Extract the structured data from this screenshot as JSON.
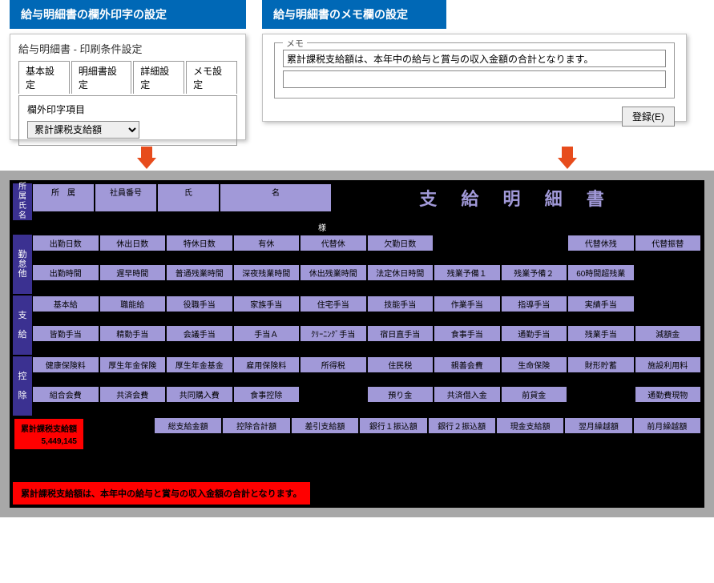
{
  "left_banner": "給与明細書の欄外印字の設定",
  "right_banner": "給与明細書のメモ欄の設定",
  "left_panel": {
    "title": "給与明細書 - 印刷条件設定",
    "tabs": [
      "基本設定",
      "明細書設定",
      "詳細設定",
      "メモ設定"
    ],
    "active_tab": 2,
    "field_label": "欄外印字項目",
    "select_value": "累計課税支給額"
  },
  "right_panel": {
    "legend": "メモ",
    "memo_value": "累計課税支給額は、本年中の給与と賞与の収入金額の合計となります。",
    "blank_value": "",
    "button": "登録(E)"
  },
  "report": {
    "title": "支 給 明 細 書",
    "name_side": "所属氏名",
    "name_hdrs": [
      "所　属",
      "社員番号",
      "氏",
      "名"
    ],
    "sama": "様",
    "kintai_side": "勤怠他",
    "kintai_r1": [
      "出勤日数",
      "休出日数",
      "特休日数",
      "有休",
      "代替休",
      "欠勤日数",
      "",
      "",
      "代替休残",
      "代替振替"
    ],
    "kintai_r2": [
      "出勤時間",
      "遅早時間",
      "普通残業時間",
      "深夜残業時間",
      "休出残業時間",
      "法定休日時間",
      "残業予備１",
      "残業予備２",
      "60時間超残業",
      ""
    ],
    "shikyu_side": "支給",
    "shikyu_r1": [
      "基本給",
      "職能給",
      "役職手当",
      "家族手当",
      "住宅手当",
      "技能手当",
      "作業手当",
      "指導手当",
      "実績手当",
      ""
    ],
    "shikyu_r2": [
      "皆勤手当",
      "精勤手当",
      "会議手当",
      "手当Ａ",
      "ｸﾘｰﾆﾝｸﾞ手当",
      "宿日直手当",
      "食事手当",
      "通勤手当",
      "残業手当",
      "減額金"
    ],
    "koujo_side": "控除",
    "koujo_r1": [
      "健康保険料",
      "厚生年金保険",
      "厚生年金基金",
      "雇用保険料",
      "所得税",
      "住民税",
      "親善会費",
      "生命保険",
      "財形貯蓄",
      "施設利用料"
    ],
    "koujo_r2": [
      "組合会費",
      "共済会費",
      "共同購入費",
      "食事控除",
      "",
      "預り金",
      "共済借入金",
      "前貸金",
      "",
      "通勤費現物"
    ],
    "summary_r": [
      "総支給金額",
      "控除合計額",
      "差引支給額",
      "銀行１振込額",
      "銀行２振込額",
      "現金支給額",
      "翌月繰越額",
      "前月繰越額"
    ],
    "hl_label": "累計課税支給額",
    "hl_value": "5,449,145",
    "bottom_hl": "累計課税支給額は、本年中の給与と賞与の収入金額の合計となります。"
  }
}
